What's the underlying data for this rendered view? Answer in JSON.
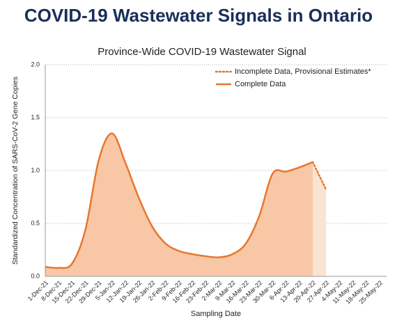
{
  "page_title": "COVID-19 Wastewater Signals in Ontario",
  "chart_data": {
    "type": "line",
    "title": "Province-Wide COVID-19 Wastewater Signal",
    "x_label": "Sampling Date",
    "y_label": "Standardized Concentration of SARS-CoV-2 Gene Copies",
    "categories": [
      "1-Dec-21",
      "8-Dec-21",
      "15-Dec-21",
      "22-Dec-21",
      "29-Dec-21",
      "5-Jan-22",
      "12-Jan-22",
      "19-Jan-22",
      "26-Jan-22",
      "2-Feb-22",
      "9-Feb-22",
      "16-Feb-22",
      "23-Feb-22",
      "2-Mar-22",
      "9-Mar-22",
      "16-Mar-22",
      "23-Mar-22",
      "30-Mar-22",
      "6-Apr-22",
      "13-Apr-22",
      "20-Apr-22",
      "27-Apr-22",
      "4-May-22",
      "11-May-22",
      "18-May-22",
      "25-May-22"
    ],
    "series": [
      {
        "name": "Incomplete Data, Provisional Estimates*",
        "color": "#e8762d",
        "fill": "#fbe3d2",
        "style": "dotted",
        "values": [
          null,
          null,
          null,
          null,
          null,
          null,
          null,
          null,
          null,
          null,
          null,
          null,
          null,
          null,
          null,
          null,
          null,
          null,
          null,
          null,
          1.08,
          0.82,
          null,
          null,
          null,
          null
        ]
      },
      {
        "name": "Complete Data",
        "color": "#e8762d",
        "fill": "#f7c7a6",
        "style": "solid",
        "values": [
          0.09,
          0.08,
          0.12,
          0.44,
          1.1,
          1.35,
          1.07,
          0.74,
          0.47,
          0.31,
          0.24,
          0.21,
          0.19,
          0.18,
          0.21,
          0.31,
          0.57,
          0.97,
          0.99,
          1.03,
          1.08,
          null,
          null,
          null,
          null,
          null
        ]
      }
    ],
    "ylim": [
      0,
      2
    ],
    "yticks": [
      {
        "value": 0,
        "label": "0.0"
      },
      {
        "value": 0.5,
        "label": "0.5"
      },
      {
        "value": 1,
        "label": "1.0"
      },
      {
        "value": 1.5,
        "label": "1.5"
      },
      {
        "value": 2,
        "label": "2.0"
      }
    ],
    "grid": true,
    "legend": "upper right"
  }
}
